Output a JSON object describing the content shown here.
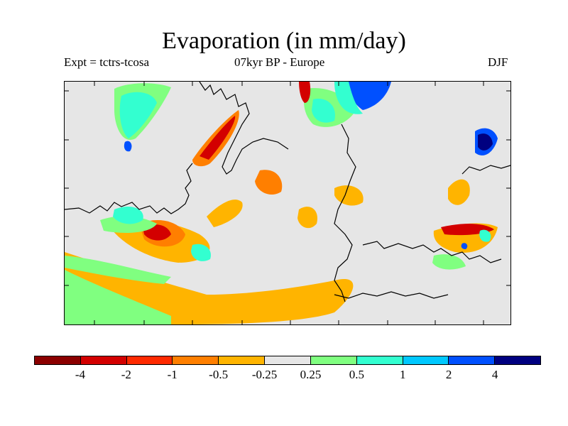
{
  "title": "Evaporation (in mm/day)",
  "subtitle_left": "Expt = tctrs-tcosa",
  "subtitle_center": "07kyr BP - Europe",
  "subtitle_right": "DJF",
  "colorbar": {
    "colors": [
      "#8b0000",
      "#d30000",
      "#ff2a00",
      "#ff7f00",
      "#ffb400",
      "#e6e6e6",
      "#80ff80",
      "#33ffd0",
      "#00c8ff",
      "#0050ff",
      "#000080"
    ],
    "labels": [
      "-4",
      "-2",
      "-1",
      "-0.5",
      "-0.25",
      "0.25",
      "0.5",
      "1",
      "2",
      "4"
    ]
  }
}
